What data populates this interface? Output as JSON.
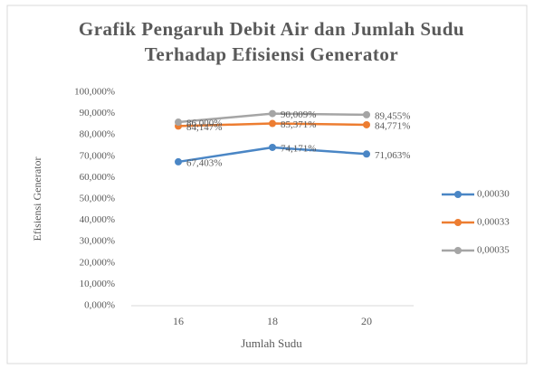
{
  "chart_data": {
    "type": "line",
    "title": "Grafik Pengaruh Debit Air dan Jumlah Sudu Terhadap Efisiensi Generator",
    "x_label": "Jumlah Sudu",
    "y_label": "Efisiensi Generator",
    "categories": [
      "16",
      "18",
      "20"
    ],
    "series": [
      {
        "name": "0,00030",
        "color": "#4a86c5",
        "values": [
          67.403,
          74.171,
          71.063
        ],
        "value_labels": [
          "67,403%",
          "74,171%",
          "71,063%"
        ]
      },
      {
        "name": "0,00033",
        "color": "#ed7d31",
        "values": [
          84.147,
          85.371,
          84.771
        ],
        "value_labels": [
          "84,147%",
          "85,371%",
          "84,771%"
        ]
      },
      {
        "name": "0,00035",
        "color": "#a5a5a5",
        "values": [
          86.0,
          90.009,
          89.455
        ],
        "value_labels": [
          "86,000%",
          "90,009%",
          "89,455%"
        ]
      }
    ],
    "ylim": [
      0,
      100
    ],
    "yticks": [
      {
        "value": 0,
        "label": "0,000%"
      },
      {
        "value": 10,
        "label": "10,000%"
      },
      {
        "value": 20,
        "label": "20,000%"
      },
      {
        "value": 30,
        "label": "30,000%"
      },
      {
        "value": 40,
        "label": "40,000%"
      },
      {
        "value": 50,
        "label": "50,000%"
      },
      {
        "value": 60,
        "label": "60,000%"
      },
      {
        "value": 70,
        "label": "70,000%"
      },
      {
        "value": 80,
        "label": "80,000%"
      },
      {
        "value": 90,
        "label": "90,000%"
      },
      {
        "value": 100,
        "label": "100,000%"
      }
    ],
    "grid": false,
    "legend": "right"
  }
}
